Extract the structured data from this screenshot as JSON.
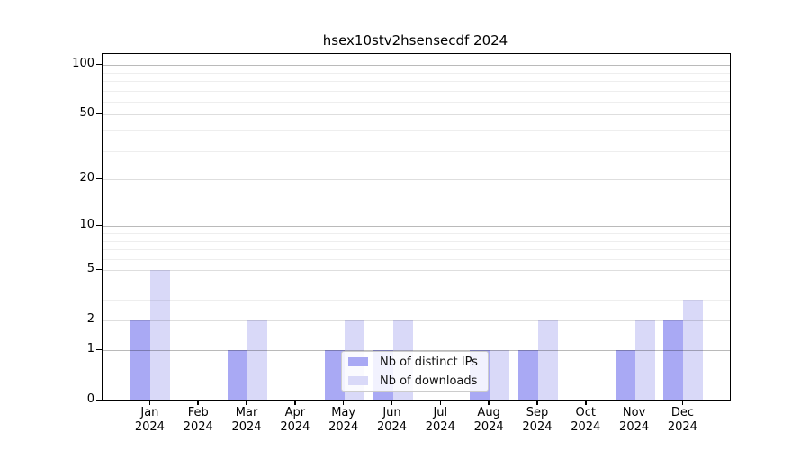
{
  "title": "hsex10stv2hsensecdf 2024",
  "chart_data": {
    "type": "bar",
    "title": "hsex10stv2hsensecdf 2024",
    "categories": [
      "Jan 2024",
      "Feb 2024",
      "Mar 2024",
      "Apr 2024",
      "May 2024",
      "Jun 2024",
      "Jul 2024",
      "Aug 2024",
      "Sep 2024",
      "Oct 2024",
      "Nov 2024",
      "Dec 2024"
    ],
    "series": [
      {
        "name": "Nb of distinct IPs",
        "color": "#a9a9f4",
        "values": [
          2,
          0,
          1,
          0,
          1,
          1,
          0,
          1,
          1,
          0,
          1,
          2
        ]
      },
      {
        "name": "Nb of downloads",
        "color": "#d9d9f8",
        "values": [
          5,
          0,
          2,
          0,
          2,
          2,
          0,
          1,
          2,
          0,
          2,
          3
        ]
      }
    ],
    "xlabel": "",
    "ylabel": "",
    "y_scale": "log(1+x)",
    "ylim": [
      0,
      117
    ],
    "y_tick_labels": [
      0,
      1,
      2,
      5,
      10,
      20,
      50,
      100
    ],
    "gridlines_major": [
      1,
      10,
      100
    ],
    "gridlines_labeled": [
      2,
      5,
      20,
      50
    ],
    "gridlines_minor": [
      3,
      4,
      6,
      7,
      8,
      9,
      30,
      40,
      60,
      70,
      80,
      90
    ],
    "grid": true,
    "legend_position": "lower center",
    "legend_entries": [
      "Nb of distinct IPs",
      "Nb of downloads"
    ]
  }
}
